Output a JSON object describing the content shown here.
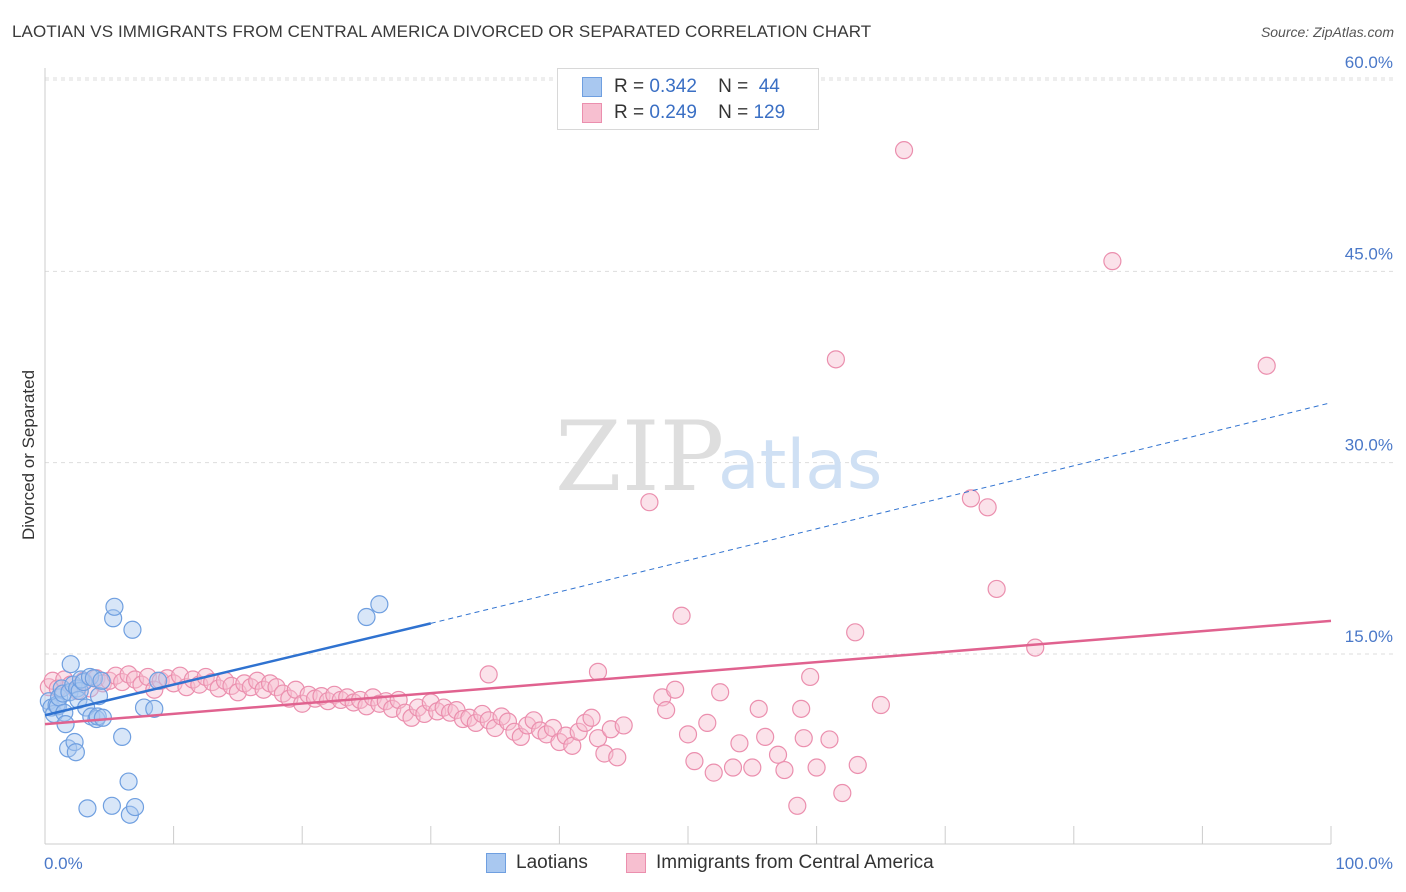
{
  "title": "LAOTIAN VS IMMIGRANTS FROM CENTRAL AMERICA DIVORCED OR SEPARATED CORRELATION CHART",
  "source": "Source: ZipAtlas.com",
  "watermark": {
    "zip": "ZIP",
    "atlas": "atlas"
  },
  "legend_top": {
    "rows": [
      {
        "r_label": "R =",
        "r_value": "0.342",
        "n_label": "N =",
        "n_value": "44"
      },
      {
        "r_label": "R =",
        "r_value": "0.249",
        "n_label": "N =",
        "n_value": "129"
      }
    ]
  },
  "colors": {
    "blue_fill": "#a9c8f0",
    "blue_stroke": "#6f9fe0",
    "blue_line": "#2f72d0",
    "pink_fill": "#f7bfd0",
    "pink_stroke": "#eb8fae",
    "pink_line": "#e0628f",
    "grid": "#dddddd",
    "tick_label": "#4a78c8"
  },
  "chart_data": {
    "type": "scatter",
    "title": "LAOTIAN VS IMMIGRANTS FROM CENTRAL AMERICA DIVORCED OR SEPARATED CORRELATION CHART",
    "ylabel": "Divorced or Separated",
    "xlabel": "",
    "xlim": [
      0,
      100
    ],
    "ylim": [
      0,
      62
    ],
    "y_ticks": [
      15,
      30,
      45,
      60
    ],
    "y_tick_labels": [
      "15.0%",
      "30.0%",
      "45.0%",
      "60.0%"
    ],
    "x_tick_labels": [
      "0.0%",
      "100.0%"
    ],
    "grid": true,
    "legend_position": "bottom",
    "series": [
      {
        "name": "Laotians",
        "color": "#a9c8f0",
        "trend": {
          "x": [
            0,
            30
          ],
          "y": [
            10.2,
            17.4
          ],
          "dashed_to_x": 100,
          "dashed_to_y": 34.7
        },
        "points": [
          [
            0.3,
            11.3
          ],
          [
            0.5,
            10.8
          ],
          [
            0.7,
            10.3
          ],
          [
            0.9,
            11.0
          ],
          [
            1.0,
            10.9
          ],
          [
            1.1,
            11.6
          ],
          [
            1.3,
            12.3
          ],
          [
            1.4,
            11.9
          ],
          [
            1.5,
            10.4
          ],
          [
            1.6,
            9.5
          ],
          [
            1.8,
            7.6
          ],
          [
            1.9,
            12.0
          ],
          [
            2.0,
            14.2
          ],
          [
            2.2,
            12.6
          ],
          [
            2.3,
            8.1
          ],
          [
            2.4,
            7.3
          ],
          [
            2.5,
            12.3
          ],
          [
            2.6,
            11.4
          ],
          [
            2.7,
            12.1
          ],
          [
            2.8,
            13.0
          ],
          [
            3.0,
            12.8
          ],
          [
            3.2,
            10.8
          ],
          [
            3.3,
            2.9
          ],
          [
            3.5,
            13.2
          ],
          [
            3.6,
            10.1
          ],
          [
            3.8,
            13.1
          ],
          [
            4.0,
            9.9
          ],
          [
            4.1,
            10.1
          ],
          [
            4.2,
            11.7
          ],
          [
            4.4,
            12.9
          ],
          [
            4.5,
            10.0
          ],
          [
            5.2,
            3.1
          ],
          [
            5.3,
            17.8
          ],
          [
            5.4,
            18.7
          ],
          [
            6.0,
            8.5
          ],
          [
            6.5,
            5.0
          ],
          [
            6.6,
            2.4
          ],
          [
            6.8,
            16.9
          ],
          [
            7.0,
            3.0
          ],
          [
            7.7,
            10.8
          ],
          [
            8.5,
            10.7
          ],
          [
            8.8,
            12.9
          ],
          [
            25.0,
            17.9
          ],
          [
            26.0,
            18.9
          ]
        ]
      },
      {
        "name": "Immigrants from Central America",
        "color": "#f7bfd0",
        "trend": {
          "x": [
            0,
            100
          ],
          "y": [
            9.5,
            17.6
          ]
        },
        "points": [
          [
            0.3,
            12.4
          ],
          [
            0.6,
            12.9
          ],
          [
            1.0,
            12.3
          ],
          [
            1.5,
            13.0
          ],
          [
            2.0,
            12.6
          ],
          [
            2.5,
            12.1
          ],
          [
            3.0,
            12.9
          ],
          [
            3.5,
            12.3
          ],
          [
            4.0,
            13.1
          ],
          [
            4.5,
            12.7
          ],
          [
            5.0,
            12.9
          ],
          [
            5.5,
            13.3
          ],
          [
            6.0,
            12.8
          ],
          [
            6.5,
            13.4
          ],
          [
            7.0,
            13.0
          ],
          [
            7.5,
            12.6
          ],
          [
            8.0,
            13.2
          ],
          [
            8.5,
            12.2
          ],
          [
            9.0,
            12.9
          ],
          [
            9.5,
            13.1
          ],
          [
            10.0,
            12.7
          ],
          [
            10.5,
            13.3
          ],
          [
            11.0,
            12.4
          ],
          [
            11.5,
            13.0
          ],
          [
            12.0,
            12.6
          ],
          [
            12.5,
            13.2
          ],
          [
            13.0,
            12.8
          ],
          [
            13.5,
            12.3
          ],
          [
            14.0,
            12.9
          ],
          [
            14.5,
            12.5
          ],
          [
            15.0,
            12.0
          ],
          [
            15.5,
            12.7
          ],
          [
            16.0,
            12.4
          ],
          [
            16.5,
            12.9
          ],
          [
            17.0,
            12.2
          ],
          [
            17.5,
            12.7
          ],
          [
            18.0,
            12.4
          ],
          [
            18.5,
            11.9
          ],
          [
            19.0,
            11.5
          ],
          [
            19.5,
            12.2
          ],
          [
            20.0,
            11.1
          ],
          [
            20.5,
            11.8
          ],
          [
            21.0,
            11.5
          ],
          [
            21.5,
            11.7
          ],
          [
            22.0,
            11.3
          ],
          [
            22.5,
            11.8
          ],
          [
            23.0,
            11.4
          ],
          [
            23.5,
            11.6
          ],
          [
            24.0,
            11.2
          ],
          [
            24.5,
            11.4
          ],
          [
            25.0,
            10.9
          ],
          [
            25.5,
            11.6
          ],
          [
            26.0,
            11.1
          ],
          [
            26.5,
            11.3
          ],
          [
            27.0,
            10.7
          ],
          [
            27.5,
            11.4
          ],
          [
            28.0,
            10.4
          ],
          [
            28.5,
            10.0
          ],
          [
            29.0,
            10.8
          ],
          [
            29.5,
            10.3
          ],
          [
            30.0,
            11.2
          ],
          [
            30.5,
            10.5
          ],
          [
            31.0,
            10.8
          ],
          [
            31.5,
            10.4
          ],
          [
            32.0,
            10.6
          ],
          [
            32.5,
            9.9
          ],
          [
            33.0,
            10.0
          ],
          [
            33.5,
            9.6
          ],
          [
            34.0,
            10.3
          ],
          [
            34.5,
            9.8
          ],
          [
            35.0,
            9.2
          ],
          [
            35.5,
            10.1
          ],
          [
            36.0,
            9.7
          ],
          [
            36.5,
            8.9
          ],
          [
            37.0,
            8.5
          ],
          [
            37.5,
            9.4
          ],
          [
            38.0,
            9.8
          ],
          [
            38.5,
            9.0
          ],
          [
            39.0,
            8.7
          ],
          [
            39.5,
            9.2
          ],
          [
            40.0,
            8.1
          ],
          [
            40.5,
            8.6
          ],
          [
            41.0,
            7.8
          ],
          [
            41.5,
            8.9
          ],
          [
            42.0,
            9.6
          ],
          [
            42.5,
            10.0
          ],
          [
            43.0,
            8.4
          ],
          [
            43.5,
            7.2
          ],
          [
            44.0,
            9.1
          ],
          [
            44.5,
            6.9
          ],
          [
            45.0,
            9.4
          ],
          [
            34.5,
            13.4
          ],
          [
            43.0,
            13.6
          ],
          [
            47.0,
            26.9
          ],
          [
            48.0,
            11.6
          ],
          [
            48.3,
            10.6
          ],
          [
            49.0,
            12.2
          ],
          [
            49.5,
            18.0
          ],
          [
            50.0,
            8.7
          ],
          [
            50.5,
            6.6
          ],
          [
            51.5,
            9.6
          ],
          [
            52.0,
            5.7
          ],
          [
            52.5,
            12.0
          ],
          [
            53.5,
            6.1
          ],
          [
            54.0,
            8.0
          ],
          [
            55.0,
            6.1
          ],
          [
            55.5,
            10.7
          ],
          [
            56.0,
            8.5
          ],
          [
            57.0,
            7.1
          ],
          [
            57.5,
            5.9
          ],
          [
            58.5,
            3.1
          ],
          [
            58.8,
            10.7
          ],
          [
            59.0,
            8.4
          ],
          [
            59.5,
            13.2
          ],
          [
            60.0,
            6.1
          ],
          [
            61.0,
            8.3
          ],
          [
            61.5,
            38.1
          ],
          [
            62.0,
            4.1
          ],
          [
            63.0,
            16.7
          ],
          [
            63.2,
            6.3
          ],
          [
            65.0,
            11.0
          ],
          [
            66.8,
            54.5
          ],
          [
            72.0,
            27.2
          ],
          [
            73.3,
            26.5
          ],
          [
            74.0,
            20.1
          ],
          [
            77.0,
            15.5
          ],
          [
            83.0,
            45.8
          ],
          [
            95.0,
            37.6
          ]
        ]
      }
    ]
  },
  "legend_bottom": {
    "items": [
      {
        "label": "Laotians"
      },
      {
        "label": "Immigrants from Central America"
      }
    ]
  }
}
